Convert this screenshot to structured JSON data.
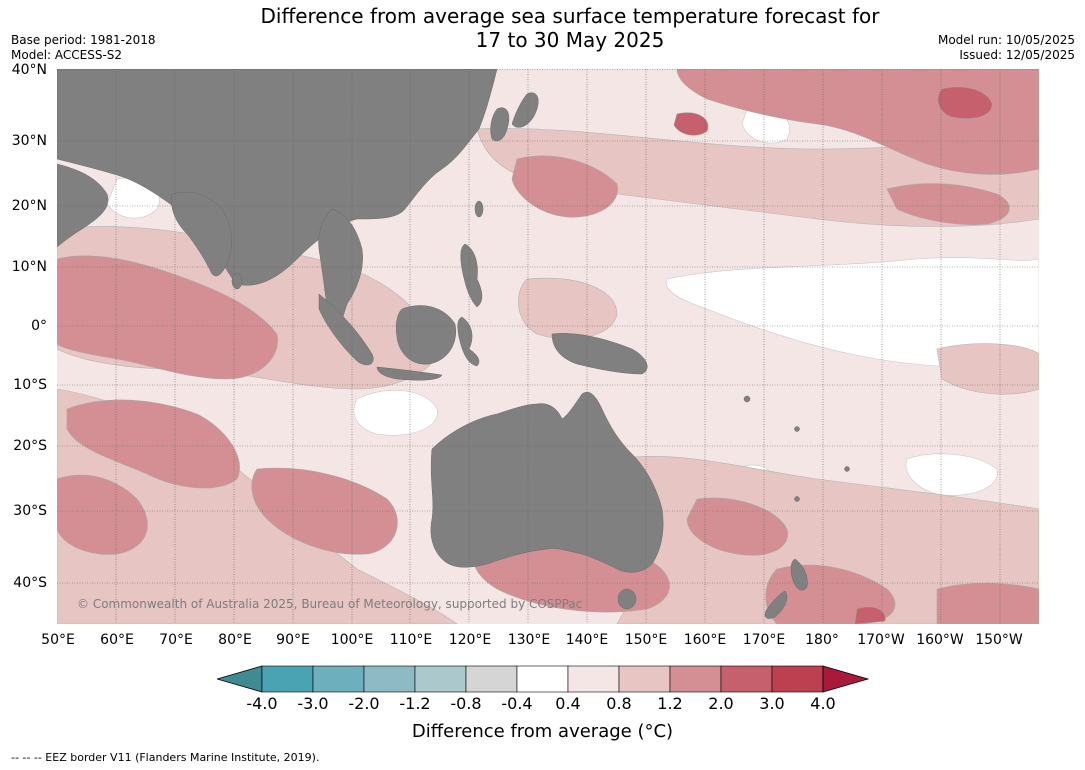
{
  "title": {
    "line1": "Difference from average sea surface temperature forecast for",
    "line2": "17 to 30 May 2025"
  },
  "meta_left": {
    "base_period": "Base period: 1981-2018",
    "model": "Model: ACCESS-S2"
  },
  "meta_right": {
    "model_run": "Model run: 10/05/2025",
    "issued": "Issued: 12/05/2025"
  },
  "map": {
    "lat_labels": [
      "40°N",
      "30°N",
      "20°N",
      "10°N",
      "0°",
      "10°S",
      "20°S",
      "30°S",
      "40°S"
    ],
    "lon_labels": [
      "50°E",
      "60°E",
      "70°E",
      "80°E",
      "90°E",
      "100°E",
      "110°E",
      "120°E",
      "130°E",
      "140°E",
      "150°E",
      "160°E",
      "170°E",
      "180°",
      "170°W",
      "160°W",
      "150°W"
    ],
    "copyright": "© Commonwealth of Australia 2025, Bureau of Meteorology, supported by COSPPac",
    "colors": {
      "land": "#808080",
      "bin_0p4_0p8": "#f4e6e5",
      "bin_0p8_1p2": "#e7c5c2",
      "bin_1p2_2p0": "#d48f95",
      "bin_2p0_3p0": "#c6606c"
    }
  },
  "colorbar": {
    "ticks": [
      "-4.0",
      "-3.0",
      "-2.0",
      "-1.2",
      "-0.8",
      "-0.4",
      "0.4",
      "0.8",
      "1.2",
      "2.0",
      "3.0",
      "4.0"
    ],
    "colors": [
      "#408a92",
      "#4aa3b3",
      "#6dafbc",
      "#8dbac5",
      "#abc8cc",
      "#d5d5d5",
      "#ffffff",
      "#f4e6e5",
      "#e7c5c2",
      "#d48f95",
      "#c6606c",
      "#bd4050",
      "#a8193a"
    ],
    "label": "Difference from average (°C)"
  },
  "footer": "--  --  -- EEZ border V11 (Flanders Marine Institute, 2019)."
}
